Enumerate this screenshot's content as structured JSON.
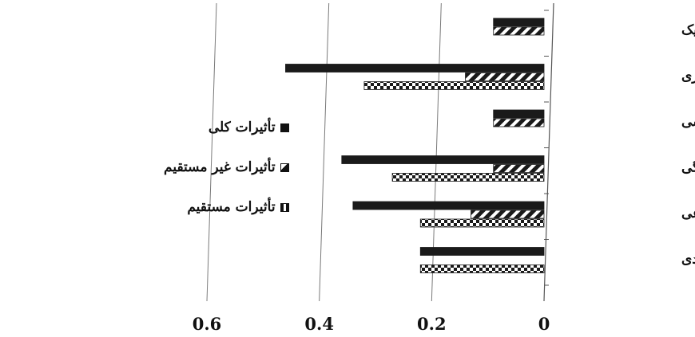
{
  "chart_data": {
    "type": "bar",
    "orientation": "horizontal",
    "x_direction": "reversed",
    "categories": [
      "پایداری اکولوژیک",
      "پایداری تکنولوژی",
      "پایداری سیاسی",
      "پایداری فرهنگی",
      "پایداری اجتماعی",
      "پایداری اقتصادی"
    ],
    "series": [
      {
        "name": "تأثیرات کلی",
        "pattern": "solid",
        "values": [
          0.09,
          0.46,
          0.09,
          0.36,
          0.34,
          0.22
        ]
      },
      {
        "name": "تأثیرات غیر مستقیم",
        "pattern": "diagonal",
        "values": [
          0.09,
          0.14,
          0.09,
          0.09,
          0.13,
          0.0
        ]
      },
      {
        "name": "تأثیرات مستقیم",
        "pattern": "checker",
        "values": [
          0.0,
          0.32,
          0.0,
          0.27,
          0.22,
          0.22
        ]
      }
    ],
    "xlim": [
      0,
      0.6
    ],
    "xticks": [
      "0",
      "0.2",
      "0.4",
      "0.6"
    ],
    "grid": true,
    "legend_position": "left"
  },
  "colors": {
    "bar": "#1a1a1a",
    "grid": "#7a7a7a",
    "axis": "#555555"
  }
}
